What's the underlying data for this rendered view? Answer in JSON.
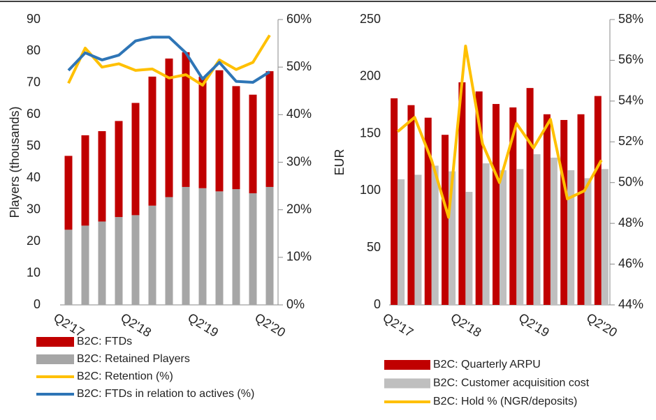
{
  "chart_data": [
    {
      "type": "bar",
      "stacked": true,
      "ylabel": "Players (thousands)",
      "categories": [
        "Q2'17",
        null,
        null,
        null,
        "Q2'18",
        null,
        null,
        null,
        "Q2'19",
        null,
        null,
        null,
        "Q2'20"
      ],
      "ylim": [
        0,
        90
      ],
      "yticks": [
        0,
        10,
        20,
        30,
        40,
        50,
        60,
        70,
        80,
        90
      ],
      "y2lim": [
        0,
        60
      ],
      "y2ticks": [
        {
          "value": 0,
          "label": "0%"
        },
        {
          "value": 10,
          "label": "10%"
        },
        {
          "value": 20,
          "label": "20%"
        },
        {
          "value": 30,
          "label": "30%"
        },
        {
          "value": 40,
          "label": "40%"
        },
        {
          "value": 50,
          "label": "50%"
        },
        {
          "value": 60,
          "label": "60%"
        }
      ],
      "series": [
        {
          "name": "B2C: FTDs",
          "type": "bar",
          "color": "#c00000",
          "values": [
            23.3,
            28.5,
            28.5,
            30.3,
            35.4,
            40.7,
            43.7,
            42.5,
            35.2,
            38.2,
            32.5,
            31.1,
            36.5
          ]
        },
        {
          "name": "B2C: Retained Players",
          "type": "bar",
          "color": "#a6a6a6",
          "values": [
            23.7,
            25,
            26.3,
            27.7,
            28.3,
            31.3,
            34,
            37.2,
            36.8,
            35.8,
            36.5,
            35.2,
            37.2
          ]
        },
        {
          "name": "B2C: Retention (%)",
          "type": "line",
          "axis": "y2",
          "color": "#ffc000",
          "values": [
            46.6,
            54,
            50,
            50.7,
            49.3,
            49.6,
            47.7,
            48.4,
            46.2,
            51.5,
            49.5,
            51,
            56.7
          ]
        },
        {
          "name": "B2C: FTDs in relation to actives (%)",
          "type": "line",
          "axis": "y2",
          "color": "#2e75b6",
          "values": [
            49.3,
            53,
            51.5,
            52.5,
            55.5,
            56.3,
            56.3,
            53,
            47.5,
            51,
            47,
            46.8,
            49
          ]
        }
      ]
    },
    {
      "type": "bar",
      "stacked": false,
      "ylabel": "EUR",
      "categories": [
        "Q2'17",
        null,
        null,
        null,
        "Q2'18",
        null,
        null,
        null,
        "Q2'19",
        null,
        null,
        null,
        "Q2'20"
      ],
      "ylim": [
        0,
        250
      ],
      "yticks": [
        0,
        50,
        100,
        150,
        200,
        250
      ],
      "y2lim": [
        44,
        58
      ],
      "y2ticks": [
        {
          "value": 44,
          "label": "44%"
        },
        {
          "value": 46,
          "label": "46%"
        },
        {
          "value": 48,
          "label": "48%"
        },
        {
          "value": 50,
          "label": "50%"
        },
        {
          "value": 52,
          "label": "52%"
        },
        {
          "value": 54,
          "label": "54%"
        },
        {
          "value": 56,
          "label": "56%"
        },
        {
          "value": 58,
          "label": "58%"
        }
      ],
      "series": [
        {
          "name": "B2C: Quarterly ARPU",
          "type": "bar",
          "color": "#c00000",
          "values": [
            181,
            175,
            164,
            149,
            195,
            187,
            176,
            173,
            190,
            167,
            162,
            167,
            183
          ]
        },
        {
          "name": "B2C: Customer acquisition cost",
          "type": "bar",
          "color": "#bfbfbf",
          "values": [
            110,
            114,
            122,
            117,
            99,
            124,
            118,
            119,
            132,
            129,
            118,
            111,
            119
          ]
        },
        {
          "name": "B2C: Hold % (NGR/deposits)",
          "type": "line",
          "axis": "y2",
          "color": "#ffc000",
          "values": [
            52.5,
            53.2,
            51.1,
            48.3,
            56.7,
            51.9,
            50,
            52.9,
            51.7,
            53.1,
            49.2,
            49.6,
            51.1
          ]
        }
      ]
    }
  ]
}
